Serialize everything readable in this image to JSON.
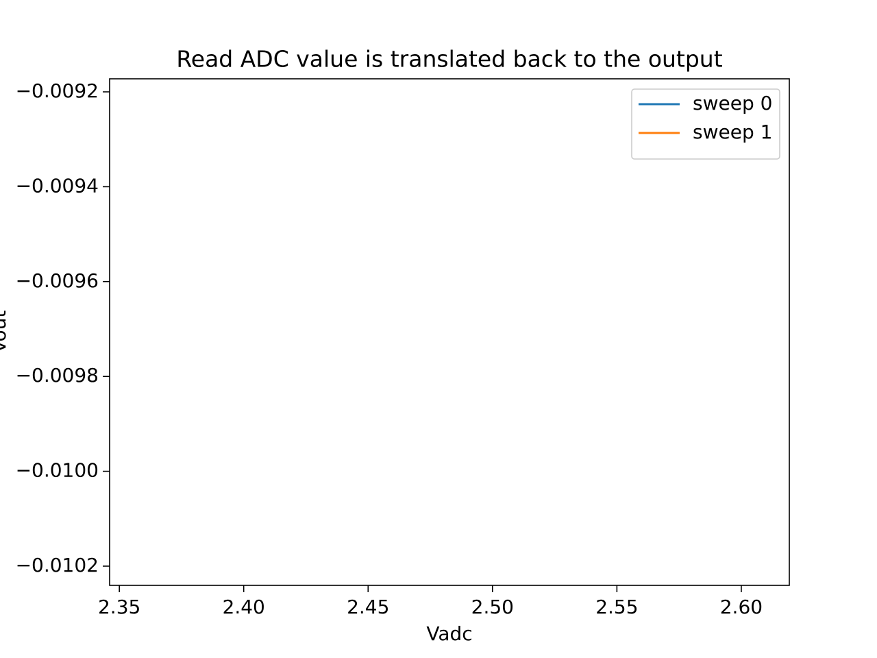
{
  "chart_data": {
    "type": "line",
    "title": "Read ADC value is translated back to the output",
    "x_label": "Vadc",
    "y_label": "Vout",
    "x": [],
    "series": [
      {
        "name": "sweep 0",
        "color": "#1f77b4",
        "values": []
      },
      {
        "name": "sweep 1",
        "color": "#ff7f0e",
        "values": []
      }
    ],
    "xlim": [
      2.3461,
      2.6193
    ],
    "xticks": [
      2.35,
      {
        "value": 2.4,
        "label": "2.40"
      },
      2.45,
      {
        "value": 2.5,
        "label": "2.50"
      },
      2.55,
      {
        "value": 2.6,
        "label": "2.60"
      }
    ],
    "ylim": [
      -0.0102405,
      -0.0091725
    ],
    "yticks": [
      {
        "value": -0.0102,
        "label": "−0.0102"
      },
      {
        "value": -0.01,
        "label": "−0.0100"
      },
      {
        "value": -0.0098,
        "label": "−0.0098"
      },
      {
        "value": -0.0096,
        "label": "−0.0096"
      },
      {
        "value": -0.0094,
        "label": "−0.0094"
      },
      {
        "value": -0.0092,
        "label": "−0.0092"
      }
    ],
    "legend": "upper right",
    "grid": false
  }
}
